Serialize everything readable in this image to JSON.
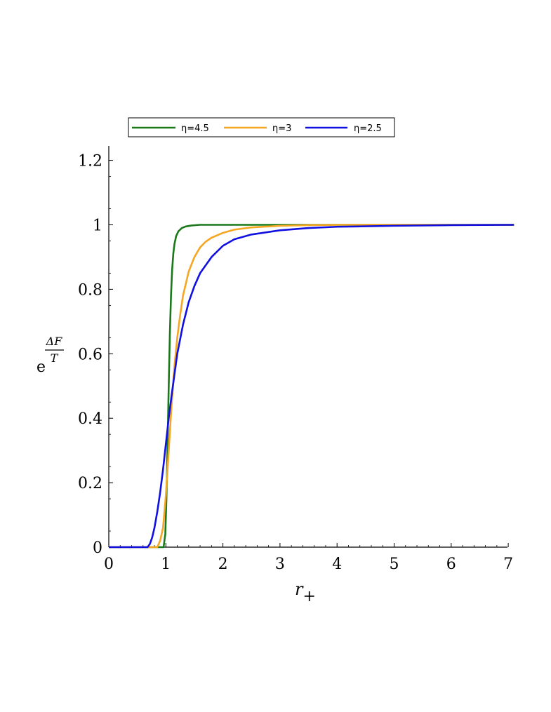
{
  "chart_data": {
    "type": "line",
    "xlabel": {
      "main": "r",
      "sub": "+"
    },
    "ylabel": {
      "base": "e",
      "numerator": "ΔF",
      "denominator": "T"
    },
    "xlim": [
      0,
      7.1
    ],
    "ylim": [
      0,
      1.25
    ],
    "x_ticks": [
      0,
      1,
      2,
      3,
      4,
      5,
      6,
      7
    ],
    "x_tick_labels": [
      "0",
      "1",
      "2",
      "3",
      "4",
      "5",
      "6",
      "7"
    ],
    "y_ticks": [
      0,
      0.2,
      0.4,
      0.6,
      0.8,
      1,
      1.2
    ],
    "y_tick_labels": [
      "0",
      "0.2",
      "0.4",
      "0.6",
      "0.8",
      "1",
      "1.2"
    ],
    "grid": false,
    "legend_position": "top",
    "series": [
      {
        "name": "η=4.5",
        "color": "#1a7a1a",
        "x": [
          0,
          0.96,
          0.99,
          1.01,
          1.03,
          1.05,
          1.07,
          1.09,
          1.11,
          1.13,
          1.15,
          1.18,
          1.22,
          1.28,
          1.35,
          1.45,
          1.6,
          2.0,
          3.0,
          5.0,
          7.1
        ],
        "y": [
          0,
          0,
          0.04,
          0.15,
          0.32,
          0.5,
          0.66,
          0.78,
          0.86,
          0.91,
          0.94,
          0.965,
          0.98,
          0.99,
          0.995,
          0.998,
          1.0,
          1.0,
          1.0,
          1.0,
          1.0
        ]
      },
      {
        "name": "η=3",
        "color": "#f5a623",
        "x": [
          0,
          0.85,
          0.9,
          0.95,
          1.0,
          1.05,
          1.1,
          1.15,
          1.2,
          1.25,
          1.3,
          1.4,
          1.5,
          1.6,
          1.7,
          1.8,
          2.0,
          2.2,
          2.5,
          3.0,
          3.5,
          4.0,
          5.0,
          6.0,
          7.1
        ],
        "y": [
          0,
          0,
          0.02,
          0.06,
          0.16,
          0.3,
          0.44,
          0.56,
          0.65,
          0.72,
          0.78,
          0.855,
          0.9,
          0.93,
          0.948,
          0.96,
          0.975,
          0.985,
          0.992,
          0.997,
          0.999,
          1.0,
          1.0,
          1.0,
          1.0
        ]
      },
      {
        "name": "η=2.5",
        "color": "#1010e0",
        "x": [
          0,
          0.68,
          0.72,
          0.76,
          0.8,
          0.85,
          0.9,
          0.95,
          1.0,
          1.05,
          1.1,
          1.2,
          1.3,
          1.4,
          1.5,
          1.6,
          1.8,
          2.0,
          2.2,
          2.5,
          3.0,
          3.5,
          4.0,
          5.0,
          6.0,
          7.1
        ],
        "y": [
          0,
          0,
          0.01,
          0.03,
          0.06,
          0.11,
          0.17,
          0.24,
          0.32,
          0.4,
          0.47,
          0.6,
          0.69,
          0.76,
          0.81,
          0.85,
          0.9,
          0.935,
          0.955,
          0.97,
          0.983,
          0.99,
          0.994,
          0.997,
          0.999,
          1.0
        ]
      }
    ]
  }
}
